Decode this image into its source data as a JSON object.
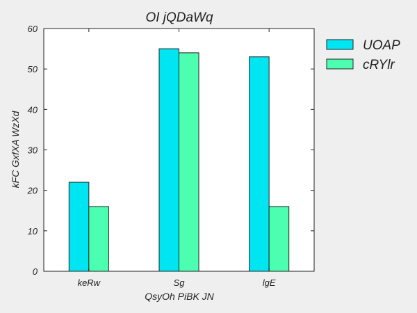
{
  "colors": {
    "background": "#efefef",
    "plot_area": "#ffffff",
    "axis": "#222222"
  },
  "chart_data": {
    "type": "bar",
    "title": "OI jQDaWq",
    "xlabel": "QsyOh PiBK  JN",
    "ylabel": "kFC GxfXA WzXd",
    "categories": [
      "keRw",
      "Sg",
      "lgE"
    ],
    "ylim": [
      0,
      60
    ],
    "yticks": [
      0,
      10,
      20,
      30,
      40,
      50,
      60
    ],
    "grid": false,
    "legend_position": "outside-right",
    "series": [
      {
        "name": "UOAP",
        "color": "#00e5f2",
        "values": [
          22,
          55,
          53
        ]
      },
      {
        "name": "cRYlr",
        "color": "#4cffb0",
        "values": [
          16,
          54,
          16
        ]
      }
    ]
  }
}
